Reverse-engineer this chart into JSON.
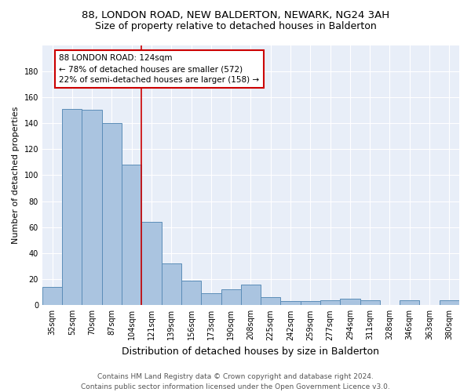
{
  "title": "88, LONDON ROAD, NEW BALDERTON, NEWARK, NG24 3AH",
  "subtitle": "Size of property relative to detached houses in Balderton",
  "xlabel": "Distribution of detached houses by size in Balderton",
  "ylabel": "Number of detached properties",
  "categories": [
    "35sqm",
    "52sqm",
    "70sqm",
    "87sqm",
    "104sqm",
    "121sqm",
    "139sqm",
    "156sqm",
    "173sqm",
    "190sqm",
    "208sqm",
    "225sqm",
    "242sqm",
    "259sqm",
    "277sqm",
    "294sqm",
    "311sqm",
    "328sqm",
    "346sqm",
    "363sqm",
    "380sqm"
  ],
  "values": [
    14,
    151,
    150,
    140,
    108,
    64,
    32,
    19,
    9,
    12,
    16,
    6,
    3,
    3,
    4,
    5,
    4,
    0,
    4,
    0,
    4
  ],
  "bar_color": "#aac4e0",
  "bar_edge_color": "#5b8db8",
  "vline_color": "#cc0000",
  "vline_index": 5,
  "annotation_text": "88 LONDON ROAD: 124sqm\n← 78% of detached houses are smaller (572)\n22% of semi-detached houses are larger (158) →",
  "annotation_box_color": "#ffffff",
  "annotation_box_edge_color": "#cc0000",
  "ylim": [
    0,
    200
  ],
  "yticks": [
    0,
    20,
    40,
    60,
    80,
    100,
    120,
    140,
    160,
    180,
    200
  ],
  "background_color": "#e8eef8",
  "footer_line1": "Contains HM Land Registry data © Crown copyright and database right 2024.",
  "footer_line2": "Contains public sector information licensed under the Open Government Licence v3.0.",
  "title_fontsize": 9.5,
  "subtitle_fontsize": 9,
  "xlabel_fontsize": 9,
  "ylabel_fontsize": 8,
  "tick_fontsize": 7,
  "annotation_fontsize": 7.5,
  "footer_fontsize": 6.5
}
